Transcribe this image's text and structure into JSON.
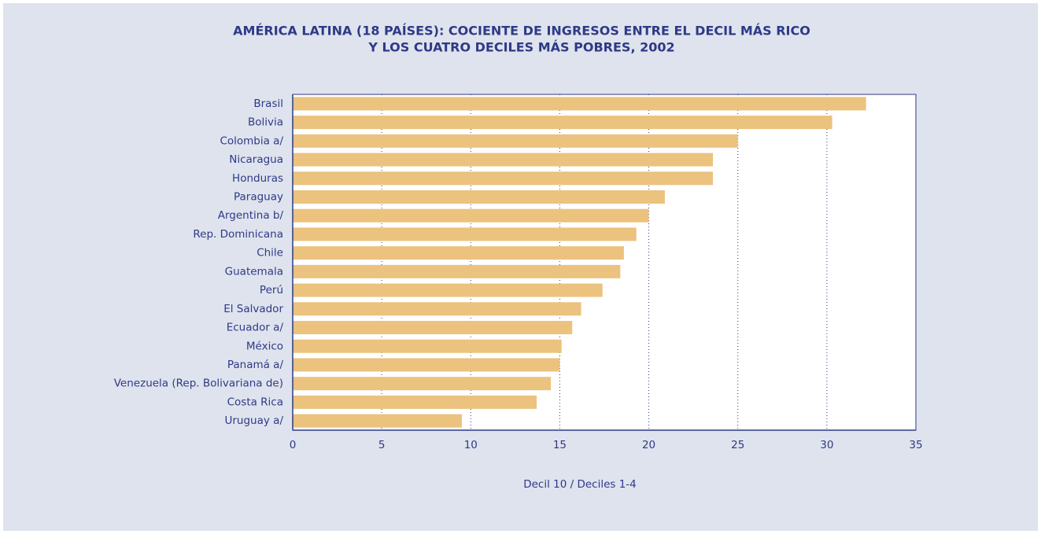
{
  "chart_data": {
    "type": "bar",
    "orientation": "horizontal",
    "title": [
      "AMÉRICA LATINA (18 PAÍSES): COCIENTE DE INGRESOS ENTRE EL DECIL MÁS RICO",
      "Y LOS CUATRO DECILES MÁS POBRES, 2002"
    ],
    "xlabel": "Decil 10 / Deciles 1-4",
    "categories": [
      "Brasil",
      "Bolivia",
      "Colombia a/",
      "Nicaragua",
      "Honduras",
      "Paraguay",
      "Argentina b/",
      "Rep. Dominicana",
      "Chile",
      "Guatemala",
      "Perú",
      "El Salvador",
      "Ecuador a/",
      "México",
      "Panamá a/",
      "Venezuela (Rep. Bolivariana de)",
      "Costa Rica",
      "Uruguay a/"
    ],
    "values": [
      32.2,
      30.3,
      25.0,
      23.6,
      23.6,
      20.9,
      20.0,
      19.3,
      18.6,
      18.4,
      17.4,
      16.2,
      15.7,
      15.1,
      15.0,
      14.5,
      13.7,
      9.5
    ],
    "color": "#ebc27e",
    "xlim": [
      0,
      35
    ],
    "xticks": [
      0,
      5,
      10,
      15,
      20,
      25,
      30,
      35
    ],
    "grid": true
  }
}
